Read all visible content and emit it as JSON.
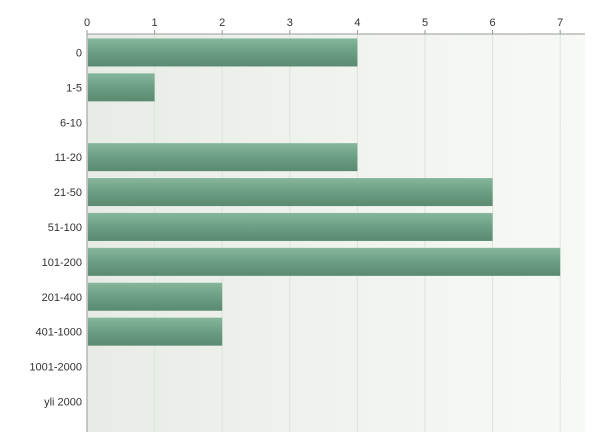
{
  "chart_data": {
    "type": "bar",
    "orientation": "horizontal",
    "categories": [
      "0",
      "1-5",
      "6-10",
      "11-20",
      "21-50",
      "51-100",
      "101-200",
      "201-400",
      "401-1000",
      "1001-2000",
      "yli 2000"
    ],
    "values": [
      4,
      1,
      0,
      4,
      6,
      6,
      7,
      2,
      2,
      0,
      0
    ],
    "x_ticks": [
      "0",
      "1",
      "2",
      "3",
      "4",
      "5",
      "6",
      "7"
    ],
    "xlim": [
      0,
      7.4
    ],
    "x_axis_position": "top",
    "grid": true,
    "title": "",
    "xlabel": "",
    "ylabel": "",
    "colors": {
      "bar": "#6b9e84",
      "bar_top": "#86b79c",
      "bar_bottom": "#5a8a71",
      "plot_bg_left": "#e8ece6",
      "plot_bg_right": "#f7f9f5",
      "grid": "#dde3dc",
      "axis": "#999999"
    }
  }
}
